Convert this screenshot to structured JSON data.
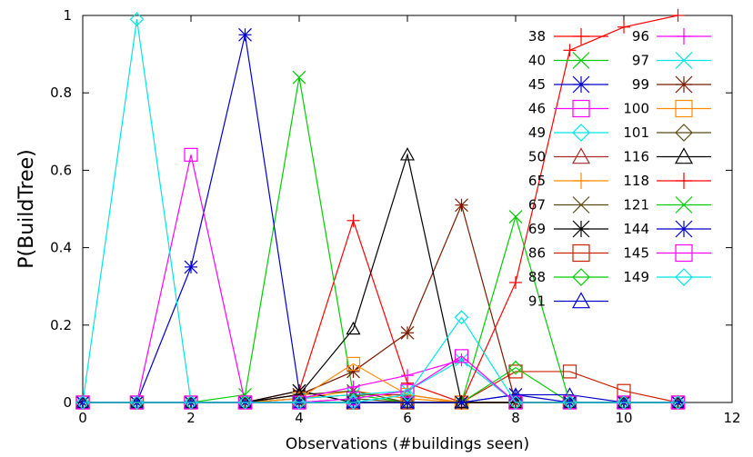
{
  "chart_data": {
    "type": "line",
    "title": "",
    "xlabel": "Observations (#buildings seen)",
    "ylabel": "P(BuildTree)",
    "xlim": [
      0,
      12
    ],
    "ylim": [
      0,
      1
    ],
    "xticks": [
      "0",
      "2",
      "4",
      "6",
      "8",
      "10",
      "12"
    ],
    "yticks": [
      "0",
      "0.2",
      "0.4",
      "0.6",
      "0.8",
      "1"
    ],
    "grid": false,
    "legend_position": "top-right",
    "x": [
      0,
      1,
      2,
      3,
      4,
      5,
      6,
      7,
      8,
      9,
      10,
      11
    ],
    "series": [
      {
        "name": "38",
        "color": "#ff0000",
        "marker": "plus",
        "values": [
          0,
          0,
          0,
          0,
          0.03,
          0.47,
          0.05,
          0,
          0,
          0,
          0,
          0
        ]
      },
      {
        "name": "40",
        "color": "#00cc00",
        "marker": "x",
        "values": [
          0,
          0,
          0,
          0.02,
          0.84,
          0.02,
          0,
          0,
          0,
          0,
          0,
          0
        ]
      },
      {
        "name": "45",
        "color": "#0000cc",
        "marker": "asterisk",
        "values": [
          0,
          0,
          0.35,
          0.95,
          0.03,
          0,
          0,
          0,
          0,
          0,
          0,
          0
        ]
      },
      {
        "name": "46",
        "color": "#ff00ff",
        "marker": "square",
        "values": [
          0,
          0,
          0.64,
          0,
          0,
          0,
          0,
          0,
          0,
          0,
          0,
          0
        ]
      },
      {
        "name": "49",
        "color": "#00e5e5",
        "marker": "diamond",
        "values": [
          0,
          0.99,
          0,
          0,
          0,
          0,
          0,
          0,
          0,
          0,
          0,
          0
        ]
      },
      {
        "name": "50",
        "color": "#a52a2a",
        "marker": "triangle",
        "values": [
          0,
          0,
          0,
          0,
          0.01,
          0.02,
          0.02,
          0,
          0,
          0,
          0,
          0
        ]
      },
      {
        "name": "65",
        "color": "#ff8c00",
        "marker": "plus",
        "values": [
          0,
          0,
          0,
          0,
          0.01,
          0.03,
          0.01,
          0,
          0,
          0,
          0,
          0
        ]
      },
      {
        "name": "67",
        "color": "#5a4a14",
        "marker": "x",
        "values": [
          0,
          0,
          0,
          0,
          0.02,
          0.03,
          0,
          0,
          0,
          0,
          0,
          0
        ]
      },
      {
        "name": "69",
        "color": "#000000",
        "marker": "asterisk",
        "values": [
          0,
          0,
          0,
          0,
          0.03,
          0,
          0,
          0,
          0,
          0,
          0,
          0
        ]
      },
      {
        "name": "86",
        "color": "#cc2200",
        "marker": "square",
        "values": [
          0,
          0,
          0,
          0,
          0,
          0,
          0,
          0,
          0.08,
          0.08,
          0.03,
          0
        ]
      },
      {
        "name": "88",
        "color": "#00cc00",
        "marker": "diamond",
        "values": [
          0,
          0,
          0,
          0,
          0,
          0,
          0,
          0,
          0.09,
          0,
          0,
          0
        ]
      },
      {
        "name": "91",
        "color": "#0000cc",
        "marker": "triangle",
        "values": [
          0,
          0,
          0,
          0,
          0,
          0,
          0,
          0,
          0.02,
          0.02,
          0,
          0
        ]
      },
      {
        "name": "96",
        "color": "#ff00ff",
        "marker": "plus",
        "values": [
          0,
          0,
          0,
          0,
          0.01,
          0.04,
          0.07,
          0.11,
          0,
          0,
          0,
          0
        ]
      },
      {
        "name": "97",
        "color": "#00e5e5",
        "marker": "x",
        "values": [
          0,
          0,
          0,
          0,
          0.01,
          0.02,
          0.03,
          0.11,
          0,
          0,
          0,
          0
        ]
      },
      {
        "name": "99",
        "color": "#7a1a00",
        "marker": "asterisk",
        "values": [
          0,
          0,
          0,
          0,
          0.02,
          0.08,
          0.18,
          0.51,
          0,
          0,
          0,
          0
        ]
      },
      {
        "name": "100",
        "color": "#ff8c00",
        "marker": "square",
        "values": [
          0,
          0,
          0,
          0,
          0.01,
          0.1,
          0.02,
          0,
          0,
          0,
          0,
          0
        ]
      },
      {
        "name": "101",
        "color": "#5a4a14",
        "marker": "diamond",
        "values": [
          0,
          0,
          0,
          0,
          0,
          0.01,
          0,
          0,
          0,
          0,
          0,
          0
        ]
      },
      {
        "name": "116",
        "color": "#000000",
        "marker": "triangle",
        "values": [
          0,
          0,
          0,
          0,
          0.02,
          0.19,
          0.64,
          0,
          0,
          0,
          0,
          0
        ]
      },
      {
        "name": "118",
        "color": "#ff0000",
        "marker": "plus",
        "values": [
          0,
          0,
          0,
          0,
          0,
          0,
          0,
          0,
          0.31,
          0.91,
          0.97,
          1.0
        ]
      },
      {
        "name": "121",
        "color": "#00cc00",
        "marker": "x",
        "values": [
          0,
          0,
          0,
          0,
          0,
          0,
          0,
          0,
          0.48,
          0,
          0,
          0
        ]
      },
      {
        "name": "144",
        "color": "#0000cc",
        "marker": "asterisk",
        "values": [
          0,
          0,
          0,
          0,
          0,
          0,
          0,
          0,
          0.02,
          0,
          0,
          0
        ]
      },
      {
        "name": "145",
        "color": "#ff00ff",
        "marker": "square",
        "values": [
          0,
          0,
          0,
          0,
          0,
          0.01,
          0.03,
          0.12,
          0,
          0,
          0,
          0
        ]
      },
      {
        "name": "149",
        "color": "#00e5e5",
        "marker": "diamond",
        "values": [
          0,
          0,
          0,
          0,
          0,
          0,
          0.02,
          0.22,
          0,
          0,
          0,
          0
        ]
      }
    ]
  }
}
